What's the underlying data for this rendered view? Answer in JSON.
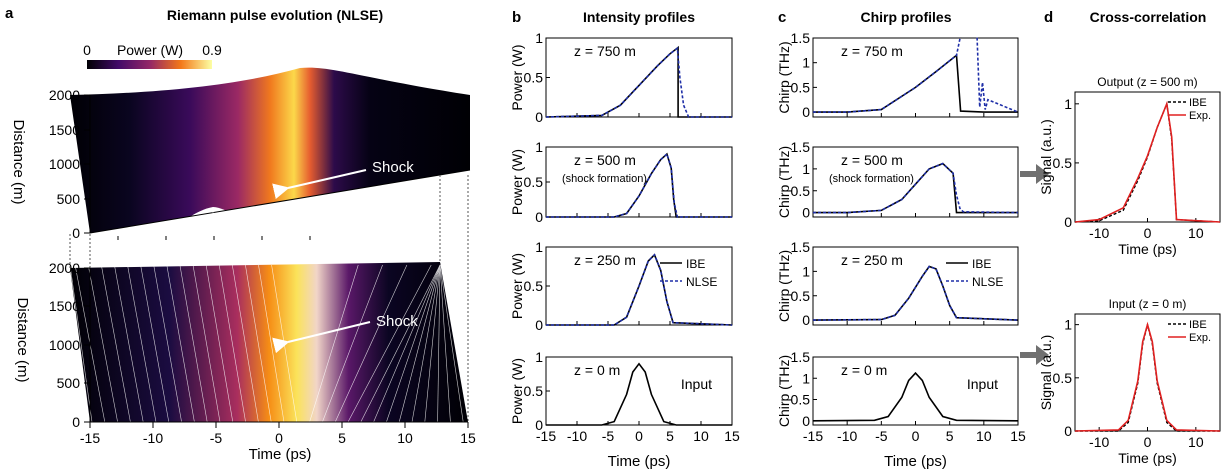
{
  "panels": {
    "a": {
      "letter": "a",
      "title": "Riemann pulse evolution (NLSE)",
      "colorbar": {
        "min_label": "0",
        "title": "Power (W)",
        "max_label": "0.9"
      },
      "y_label": "Distance (m)",
      "x_label": "Time (ps)",
      "y_ticks": [
        "0",
        "500",
        "1000",
        "1500",
        "2000"
      ],
      "x_ticks": [
        "-15",
        "-10",
        "-5",
        "0",
        "5",
        "10",
        "15"
      ],
      "shock_label": "Shock"
    },
    "b": {
      "letter": "b",
      "title": "Intensity profiles"
    },
    "c": {
      "letter": "c",
      "title": "Chirp profiles"
    },
    "d": {
      "letter": "d",
      "title": "Cross-correlation"
    }
  },
  "colors": {
    "ibe": "#000000",
    "nlse": "#1f2fa8",
    "exp": "#e02020",
    "arrow": "#707070"
  },
  "chart_data": [
    {
      "type": "heatmap",
      "title": "Riemann pulse evolution (NLSE)",
      "xlabel": "Time (ps)",
      "ylabel": "Distance (m)",
      "xlim": [
        -15,
        15
      ],
      "ylim": [
        0,
        2000
      ],
      "colorbar": {
        "label": "Power (W)",
        "range": [
          0,
          0.9
        ]
      },
      "annotation": "Shock"
    },
    {
      "type": "line",
      "panel": "b",
      "title": "Intensity profiles",
      "xlabel": "Time (ps)",
      "x_ticks": [
        "-15",
        "-10",
        "-5",
        "0",
        "5",
        "10",
        "15"
      ],
      "subplots": [
        {
          "label": "z = 750 m",
          "ylabel": "Power (W)",
          "ylim": [
            0,
            1
          ],
          "y_ticks": [
            "0",
            "0.5",
            "1"
          ],
          "series": [
            {
              "name": "IBE",
              "x": [
                -15,
                -6,
                -3,
                0,
                3,
                5,
                6.3,
                6.3,
                15
              ],
              "y": [
                0,
                0.02,
                0.15,
                0.4,
                0.65,
                0.8,
                0.88,
                0,
                0
              ]
            },
            {
              "name": "NLSE",
              "x": [
                -15,
                -6,
                -3,
                0,
                3,
                5,
                6.2,
                6.6,
                7.2,
                8,
                15
              ],
              "y": [
                0,
                0.02,
                0.15,
                0.4,
                0.65,
                0.8,
                0.87,
                0.5,
                0.15,
                0,
                0
              ]
            }
          ]
        },
        {
          "label": "z = 500 m",
          "note": "(shock formation)",
          "ylabel": "Power (W)",
          "ylim": [
            0,
            1
          ],
          "y_ticks": [
            "0",
            "0.5",
            "1"
          ],
          "series": [
            {
              "name": "IBE",
              "x": [
                -15,
                -4,
                -2,
                0,
                2,
                3.5,
                4.5,
                5.2,
                5.6,
                6,
                15
              ],
              "y": [
                0,
                0,
                0.05,
                0.3,
                0.62,
                0.82,
                0.9,
                0.7,
                0.25,
                0,
                0
              ]
            },
            {
              "name": "NLSE",
              "x": [
                -15,
                -4,
                -2,
                0,
                2,
                3.5,
                4.5,
                5.2,
                5.7,
                6.2,
                15
              ],
              "y": [
                0,
                0,
                0.05,
                0.3,
                0.62,
                0.82,
                0.9,
                0.7,
                0.2,
                0,
                0
              ]
            }
          ]
        },
        {
          "label": "z = 250 m",
          "ylabel": "Power (W)",
          "ylim": [
            0,
            1
          ],
          "y_ticks": [
            "0",
            "0.5",
            "1"
          ],
          "legend": [
            "IBE",
            "NLSE"
          ],
          "series": [
            {
              "name": "IBE",
              "x": [
                -15,
                -4,
                -2,
                0,
                1.5,
                2.5,
                3.5,
                4.5,
                5.5,
                15
              ],
              "y": [
                0,
                0,
                0.1,
                0.5,
                0.82,
                0.9,
                0.7,
                0.3,
                0.03,
                0
              ]
            },
            {
              "name": "NLSE",
              "x": [
                -15,
                -4,
                -2,
                0,
                1.5,
                2.5,
                3.5,
                4.5,
                5.5,
                15
              ],
              "y": [
                0,
                0,
                0.1,
                0.5,
                0.82,
                0.9,
                0.7,
                0.3,
                0.03,
                0
              ]
            }
          ]
        },
        {
          "label": "z = 0 m",
          "note": "Input",
          "ylabel": "Power (W)",
          "ylim": [
            0,
            1
          ],
          "y_ticks": [
            "0",
            "0.5",
            "1"
          ],
          "series": [
            {
              "name": "Input",
              "x": [
                -15,
                -6,
                -4,
                -2,
                -1,
                0,
                1,
                2,
                4,
                6,
                15
              ],
              "y": [
                0,
                0,
                0.05,
                0.45,
                0.78,
                0.9,
                0.78,
                0.45,
                0.05,
                0,
                0
              ]
            }
          ]
        }
      ]
    },
    {
      "type": "line",
      "panel": "c",
      "title": "Chirp profiles",
      "xlabel": "Time (ps)",
      "x_ticks": [
        "-15",
        "-10",
        "-5",
        "0",
        "5",
        "10",
        "15"
      ],
      "subplots": [
        {
          "label": "z = 750 m",
          "ylabel": "Chirp (THz)",
          "ylim": [
            -0.1,
            1.5
          ],
          "y_ticks": [
            "0",
            "0.5",
            "1",
            "1.5"
          ],
          "series": [
            {
              "name": "IBE",
              "x": [
                -15,
                -10,
                -5,
                0,
                3,
                6,
                6,
                6.6,
                10,
                15
              ],
              "y": [
                0,
                0,
                0.05,
                0.5,
                0.82,
                1.15,
                1.15,
                0.02,
                0,
                0
              ]
            },
            {
              "name": "NLSE",
              "x": [
                -15,
                -10,
                -5,
                0,
                3,
                6,
                6.6,
                7.2,
                9,
                9.4,
                9.8,
                10.2,
                10.6,
                15
              ],
              "y": [
                0,
                0,
                0.05,
                0.5,
                0.82,
                1.15,
                1.6,
                1.6,
                1.6,
                0.1,
                0.6,
                0.05,
                0.25,
                0
              ]
            }
          ]
        },
        {
          "label": "z = 500 m",
          "note": "(shock formation)",
          "ylabel": "Chirp (THz)",
          "ylim": [
            -0.1,
            1.5
          ],
          "y_ticks": [
            "0",
            "0.5",
            "1",
            "1.5"
          ],
          "series": [
            {
              "name": "IBE",
              "x": [
                -15,
                -10,
                -5,
                -2,
                0,
                2,
                4,
                5.5,
                6,
                15
              ],
              "y": [
                0,
                0,
                0.05,
                0.3,
                0.65,
                1,
                1.12,
                0.9,
                0,
                0
              ]
            },
            {
              "name": "NLSE",
              "x": [
                -15,
                -10,
                -5,
                -2,
                0,
                2,
                4,
                5.5,
                6,
                6.5,
                7,
                15
              ],
              "y": [
                0,
                0,
                0.05,
                0.3,
                0.65,
                1,
                1.12,
                0.9,
                0.4,
                0.1,
                0.02,
                0
              ]
            }
          ]
        },
        {
          "label": "z = 250 m",
          "ylabel": "Chirp (THz)",
          "ylim": [
            -0.1,
            1.5
          ],
          "y_ticks": [
            "0",
            "0.5",
            "1",
            "1.5"
          ],
          "legend": [
            "IBE",
            "NLSE"
          ],
          "series": [
            {
              "name": "IBE",
              "x": [
                -15,
                -5,
                -3,
                -1,
                1,
                2,
                3,
                4,
                5,
                6,
                15
              ],
              "y": [
                0,
                0.01,
                0.1,
                0.45,
                0.9,
                1.1,
                1.05,
                0.7,
                0.3,
                0.05,
                0
              ]
            },
            {
              "name": "NLSE",
              "x": [
                -15,
                -5,
                -3,
                -1,
                1,
                2,
                3,
                4,
                5,
                6,
                15
              ],
              "y": [
                0,
                0.01,
                0.1,
                0.45,
                0.9,
                1.1,
                1.05,
                0.7,
                0.3,
                0.05,
                0
              ]
            }
          ]
        },
        {
          "label": "z = 0 m",
          "note": "Input",
          "ylabel": "Chirp (THz)",
          "ylim": [
            -0.1,
            1.5
          ],
          "y_ticks": [
            "0",
            "0.5",
            "1",
            "1.5"
          ],
          "series": [
            {
              "name": "Input",
              "x": [
                -15,
                -6,
                -4,
                -2,
                -1,
                0,
                1,
                2,
                4,
                6,
                15
              ],
              "y": [
                0,
                0.01,
                0.1,
                0.55,
                0.95,
                1.12,
                0.95,
                0.55,
                0.1,
                0.01,
                0
              ]
            }
          ]
        }
      ]
    },
    {
      "type": "line",
      "panel": "d",
      "title": "Cross-correlation",
      "xlabel": "Time (ps)",
      "x_ticks": [
        "-10",
        "0",
        "10"
      ],
      "subplots": [
        {
          "label": "Output (z = 500 m)",
          "ylabel": "Signal (a.u.)",
          "xlim": [
            -15,
            15
          ],
          "ylim": [
            0,
            1.1
          ],
          "y_ticks": [
            "0",
            "0.5",
            "1"
          ],
          "legend": [
            "IBE",
            "Exp."
          ],
          "series": [
            {
              "name": "IBE",
              "x": [
                -15,
                -10,
                -5,
                -2,
                0,
                2,
                4,
                5,
                6,
                15
              ],
              "y": [
                0,
                0.01,
                0.1,
                0.35,
                0.55,
                0.8,
                1,
                0.7,
                0.02,
                0
              ]
            },
            {
              "name": "Exp.",
              "x": [
                -15,
                -10,
                -5,
                -2,
                0,
                2,
                4,
                5,
                6,
                15
              ],
              "y": [
                0,
                0.02,
                0.12,
                0.37,
                0.56,
                0.8,
                1,
                0.72,
                0.02,
                0
              ]
            }
          ]
        },
        {
          "label": "Input (z = 0 m)",
          "ylabel": "Signal (a.u.)",
          "xlim": [
            -15,
            15
          ],
          "ylim": [
            0,
            1.1
          ],
          "y_ticks": [
            "0",
            "0.5",
            "1"
          ],
          "legend": [
            "IBE",
            "Exp."
          ],
          "series": [
            {
              "name": "IBE",
              "x": [
                -15,
                -6,
                -4,
                -2,
                -1,
                0,
                1,
                2,
                4,
                6,
                15
              ],
              "y": [
                0,
                0,
                0.08,
                0.45,
                0.82,
                1,
                0.82,
                0.45,
                0.08,
                0,
                0
              ]
            },
            {
              "name": "Exp.",
              "x": [
                -15,
                -6,
                -4,
                -2,
                -1,
                0,
                1,
                2,
                4,
                6,
                15
              ],
              "y": [
                0,
                0.01,
                0.1,
                0.47,
                0.84,
                1,
                0.84,
                0.47,
                0.1,
                0.01,
                0
              ]
            }
          ]
        }
      ]
    }
  ]
}
